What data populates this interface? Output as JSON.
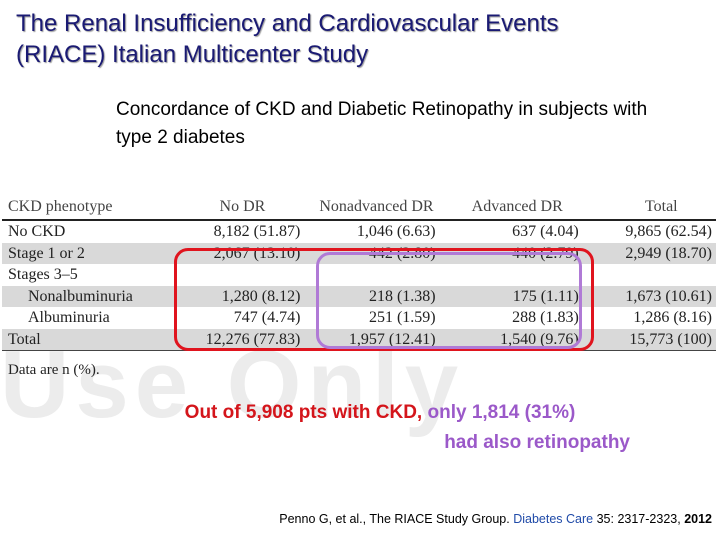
{
  "title": "The Renal Insufficiency and Cardiovascular Events (RIACE) Italian Multicenter Study",
  "subtitle": "Concordance of CKD and Diabetic Retinopathy in subjects with type 2 diabetes",
  "watermark": "Use Only",
  "table": {
    "headers": [
      "CKD phenotype",
      "No DR",
      "Nonadvanced DR",
      "Advanced DR",
      "Total"
    ],
    "rows": [
      {
        "label": "No CKD",
        "no_dr": "8,182 (51.87)",
        "nonadvanced": "1,046 (6.63)",
        "advanced": "637 (4.04)",
        "total": "9,865 (62.54)"
      },
      {
        "label": "Stage 1 or 2",
        "no_dr": "2,067 (13.10)",
        "nonadvanced": "442 (2.80)",
        "advanced": "440 (2.79)",
        "total": "2,949 (18.70)"
      },
      {
        "label": "Stages 3–5"
      },
      {
        "label": "Nonalbuminuria",
        "no_dr": "1,280 (8.12)",
        "nonadvanced": "218 (1.38)",
        "advanced": "175 (1.11)",
        "total": "1,673 (10.61)"
      },
      {
        "label": "Albuminuria",
        "no_dr": "747 (4.74)",
        "nonadvanced": "251 (1.59)",
        "advanced": "288 (1.83)",
        "total": "1,286 (8.16)"
      },
      {
        "label": "Total",
        "no_dr": "12,276 (77.83)",
        "nonadvanced": "1,957 (12.41)",
        "advanced": "1,540 (9.76)",
        "total": "15,773 (100)"
      }
    ],
    "footnote": "Data are n (%)."
  },
  "callout": {
    "part1": "Out of 5,908 pts with CKD,",
    "part2": "only 1,814 (31%)",
    "part3": "had also retinopathy"
  },
  "citation": {
    "authors": "Penno G, et al., The RIACE Study Group.",
    "journal": "Diabetes Care",
    "volume": "35: 2317-2323,",
    "year": "2012"
  },
  "colors": {
    "title": "#1a1a73",
    "red_highlight": "#e0141e",
    "purple_highlight": "#b07ad6",
    "journal_blue": "#1f4aa8"
  }
}
